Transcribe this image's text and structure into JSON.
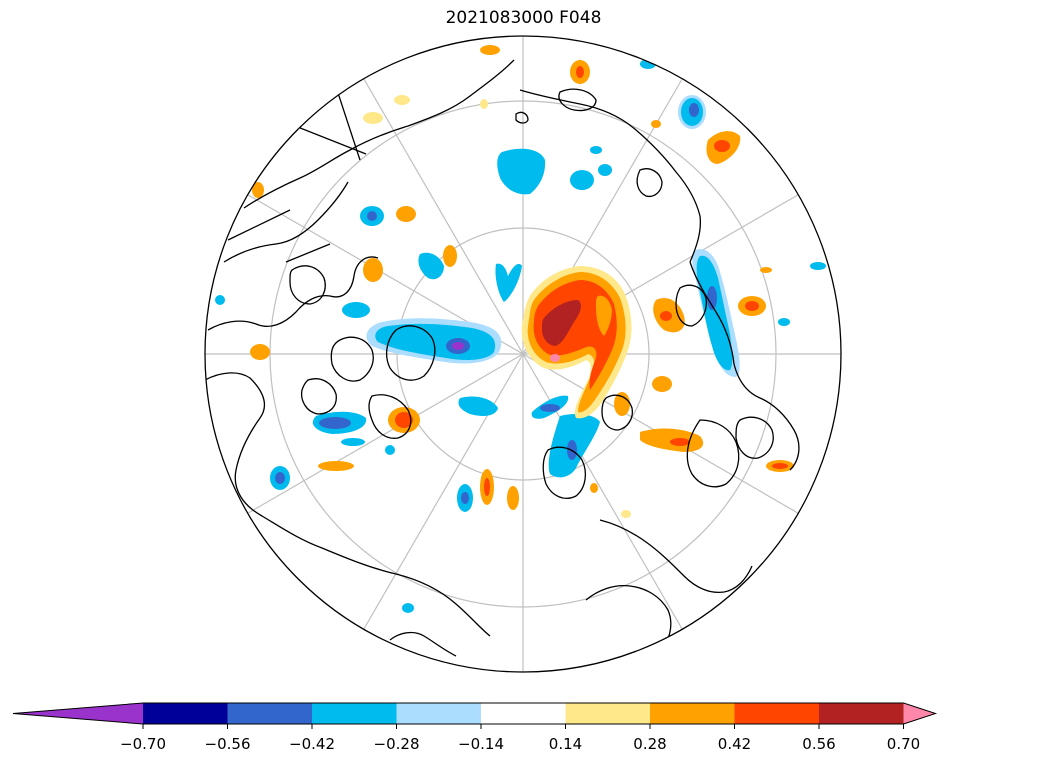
{
  "title": "2021083000 F048",
  "projection": "north-polar-stereographic",
  "colorbar": {
    "extend": "both",
    "colors": [
      "#9933cc",
      "#000099",
      "#3366cc",
      "#00bbee",
      "#aaddff",
      "#ffffff",
      "#ffe88a",
      "#ffa100",
      "#ff4500",
      "#b22222",
      "#ff88aa"
    ],
    "ticks": [
      "−0.70",
      "−0.56",
      "−0.42",
      "−0.28",
      "−0.14",
      "0.14",
      "0.28",
      "0.42",
      "0.56",
      "0.70"
    ]
  }
}
